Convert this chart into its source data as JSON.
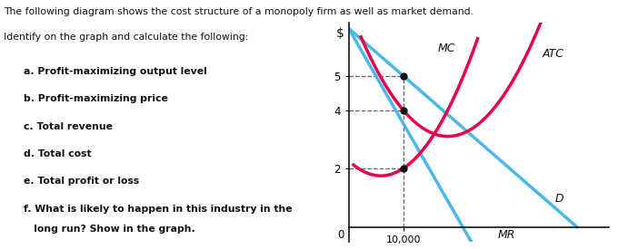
{
  "title_line1": "The following diagram shows the cost structure of a monopoly firm as well as market demand.",
  "title_line2": "Identify on the graph and calculate the following:",
  "bullets": [
    "a. Profit-maximizing output level",
    "b. Profit-maximizing price",
    "c. Total revenue",
    "d. Total cost",
    "e. Total profit or loss",
    "f. What is likely to happen in this industry in the",
    "   long run? Show in the graph."
  ],
  "mc_color": "#e8004c",
  "atc_color": "#e8004c",
  "d_color": "#4ab8e8",
  "mr_color": "#4ab8e8",
  "dot_color": "#111111",
  "dash_color": "#666666",
  "bg_color": "#ffffff",
  "text_color": "#111111",
  "ylabel": "$",
  "xtick_label": "10,000",
  "origin_label": "0",
  "mc_label": "MC",
  "atc_label": "ATC",
  "d_label": "D",
  "mr_label": "MR",
  "ytick_labels": [
    "2",
    "4",
    "5"
  ],
  "ytick_values": [
    2.0,
    4.0,
    5.0
  ]
}
